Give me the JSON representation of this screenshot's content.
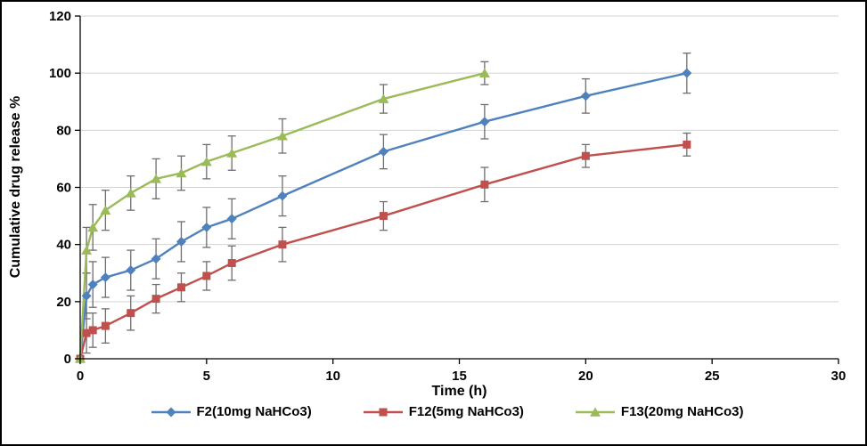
{
  "chart_data": {
    "type": "line",
    "title": "",
    "xlabel": "Time (h)",
    "ylabel": "Cumulative drug release %",
    "xlim": [
      0,
      30
    ],
    "ylim": [
      0,
      120
    ],
    "x_ticks": [
      0,
      5,
      10,
      15,
      20,
      25,
      30
    ],
    "y_ticks": [
      0,
      20,
      40,
      60,
      80,
      100,
      120
    ],
    "grid": "horizontal",
    "legend_position": "bottom",
    "gridline_color": "#d3d3d3",
    "error_bar_color": "#6e6e6e",
    "axis_color": "#000000",
    "series": [
      {
        "name": "F2(10mg NaHCo3)",
        "color": "#4f81bd",
        "marker": "diamond",
        "x": [
          0,
          0.25,
          0.5,
          1,
          2,
          3,
          4,
          5,
          6,
          8,
          12,
          16,
          20,
          24
        ],
        "y": [
          0,
          22,
          26,
          28.5,
          31,
          35,
          41,
          46,
          49,
          57,
          72.5,
          83,
          92,
          100
        ],
        "yerr": [
          0,
          8,
          8,
          7,
          7,
          7,
          7,
          7,
          7,
          7,
          6,
          6,
          6,
          7
        ]
      },
      {
        "name": "F12(5mg NaHCo3)",
        "color": "#c0504d",
        "marker": "square",
        "x": [
          0,
          0.25,
          0.5,
          1,
          2,
          3,
          4,
          5,
          6,
          8,
          12,
          16,
          20,
          24
        ],
        "y": [
          0,
          9,
          10,
          11.5,
          16,
          21,
          25,
          29,
          33.5,
          40,
          50,
          61,
          71,
          75
        ],
        "yerr": [
          0,
          7,
          6,
          6,
          6,
          5,
          5,
          5,
          6,
          6,
          5,
          6,
          4,
          4
        ]
      },
      {
        "name": "F13(20mg NaHCo3)",
        "color": "#9bbb59",
        "marker": "triangle",
        "x": [
          0,
          0.25,
          0.5,
          1,
          2,
          3,
          4,
          5,
          6,
          8,
          12,
          16
        ],
        "y": [
          0,
          38,
          46,
          52,
          58,
          63,
          65,
          69,
          72,
          78,
          91,
          100
        ],
        "yerr": [
          0,
          8,
          8,
          7,
          6,
          7,
          6,
          6,
          6,
          6,
          5,
          4
        ]
      }
    ]
  }
}
